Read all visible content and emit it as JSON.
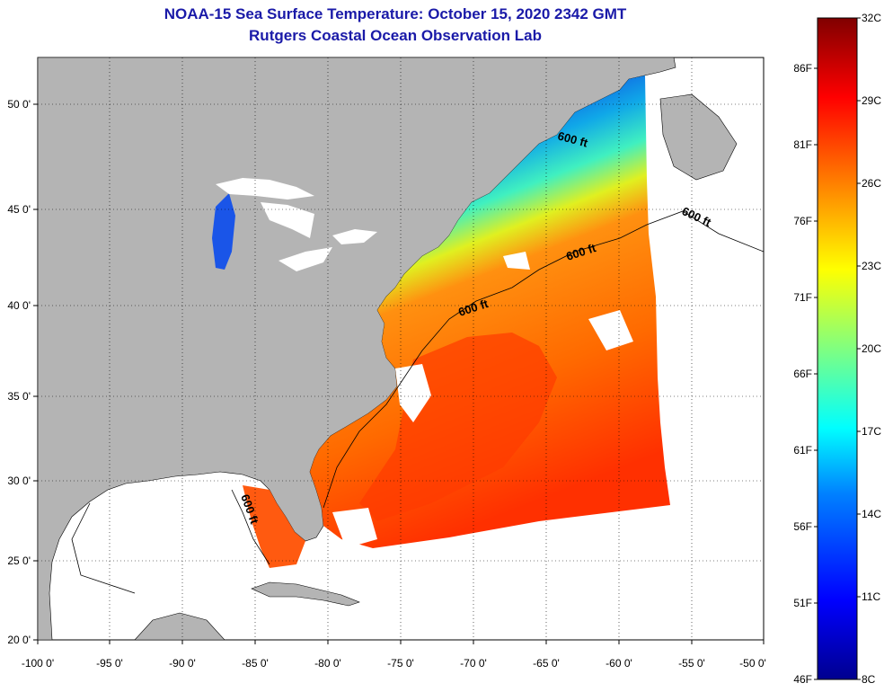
{
  "header": {
    "title": "NOAA-15 Sea Surface Temperature:  October 15, 2020 2342 GMT",
    "subtitle": "Rutgers Coastal Ocean Observation Lab"
  },
  "map": {
    "lon_ticks": [
      "-100 0'",
      "-95 0'",
      "-90 0'",
      "-85 0'",
      "-80 0'",
      "-75 0'",
      "-70 0'",
      "-65 0'",
      "-60 0'",
      "-55 0'",
      "-50 0'"
    ],
    "lat_ticks": [
      "20 0'",
      "25 0'",
      "30 0'",
      "35 0'",
      "40 0'",
      "45 0'",
      "50 0'"
    ],
    "contour_labels": [
      "600 ft",
      "600 ft",
      "600 ft",
      "600 ft",
      "600 ft"
    ],
    "colors": {
      "land": "#b4b4b4",
      "nodata": "#ffffff",
      "grid": "#000000"
    }
  },
  "colorbar": {
    "celsius": [
      "8C",
      "11C",
      "14C",
      "17C",
      "20C",
      "23C",
      "26C",
      "29C",
      "32C"
    ],
    "fahrenheit": [
      "46F",
      "51F",
      "56F",
      "61F",
      "66F",
      "71F",
      "76F",
      "81F",
      "86F"
    ],
    "gradient": [
      "#00008f",
      "#0000ff",
      "#0080ff",
      "#00ffff",
      "#80ff80",
      "#ffff00",
      "#ff8000",
      "#ff0000",
      "#800000"
    ]
  }
}
